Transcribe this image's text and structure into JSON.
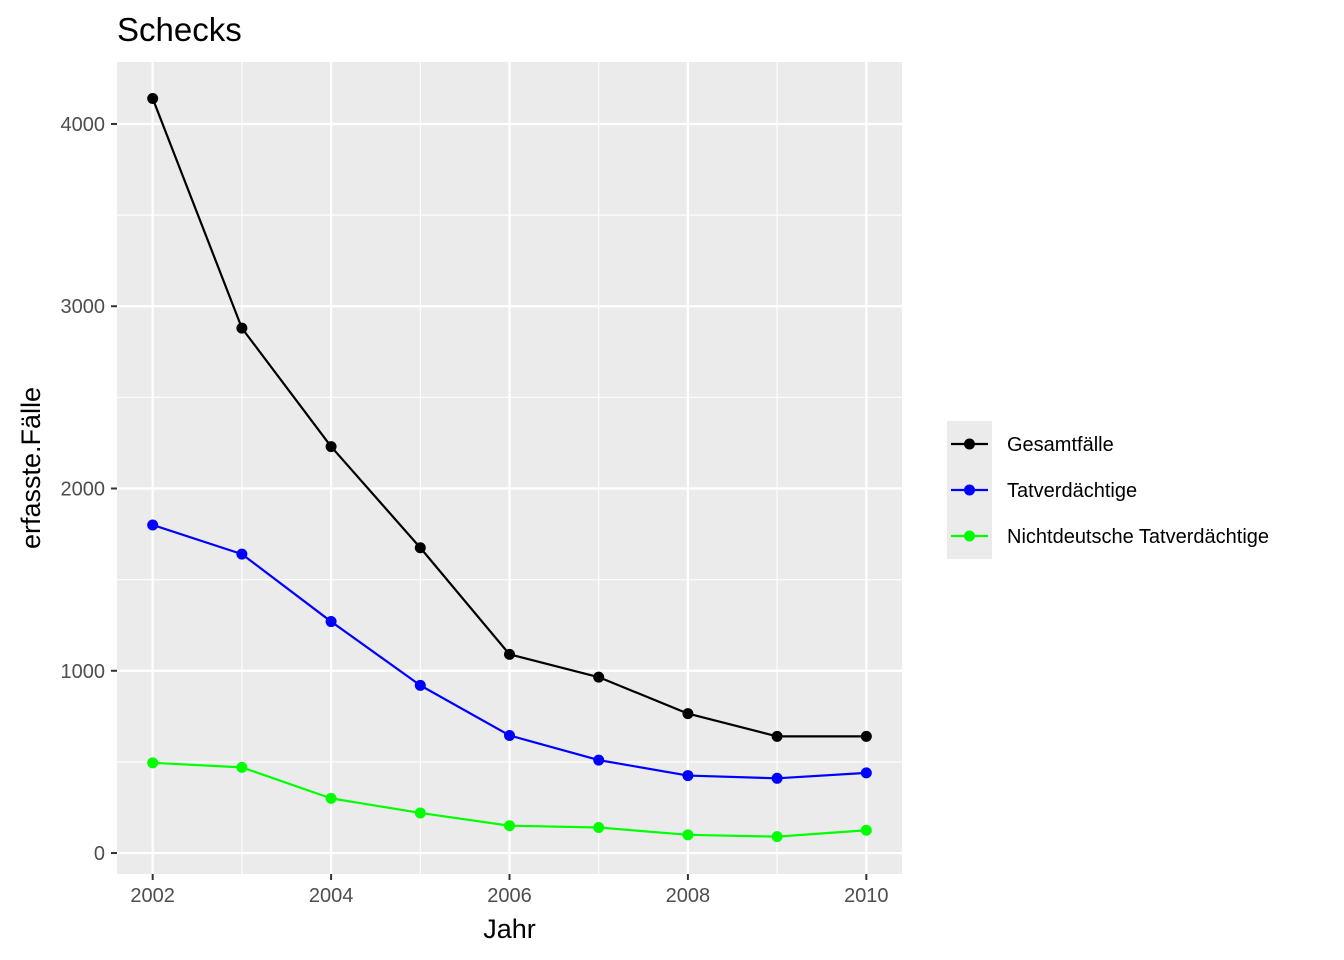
{
  "chart_data": {
    "type": "line",
    "title": "Schecks",
    "xlabel": "Jahr",
    "ylabel": "erfasste.Fälle",
    "x": [
      2002,
      2003,
      2004,
      2005,
      2006,
      2007,
      2008,
      2009,
      2010
    ],
    "xlim": [
      2001.6,
      2010.4
    ],
    "ylim": [
      -115,
      4340
    ],
    "xticks": [
      2002,
      2004,
      2006,
      2008,
      2010
    ],
    "yticks": [
      0,
      1000,
      2000,
      3000,
      4000
    ],
    "grid": true,
    "legend_position": "right",
    "series": [
      {
        "name": "Gesamtfälle",
        "color": "#000000",
        "values": [
          4140,
          2880,
          2230,
          1675,
          1090,
          965,
          765,
          640,
          640
        ]
      },
      {
        "name": "Tatverdächtige",
        "color": "#0000ff",
        "values": [
          1800,
          1640,
          1270,
          920,
          645,
          510,
          425,
          410,
          440
        ]
      },
      {
        "name": "Nichtdeutsche Tatverdächtige",
        "color": "#00ff00",
        "values": [
          495,
          470,
          300,
          220,
          150,
          140,
          100,
          90,
          125
        ]
      }
    ]
  }
}
